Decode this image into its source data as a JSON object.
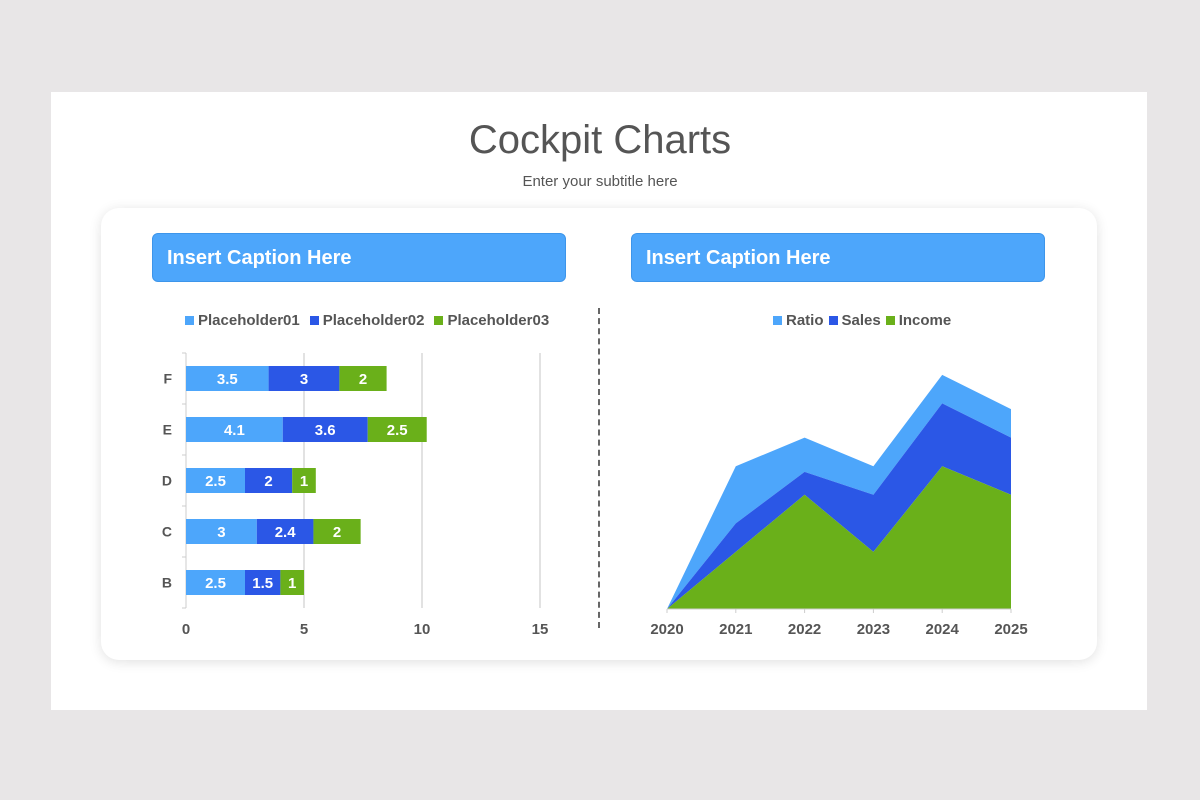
{
  "title": "Cockpit Charts",
  "subtitle": "Enter your subtitle here",
  "colors": {
    "light_blue": "#4da6fb",
    "blue": "#2b57e6",
    "green": "#6ab01a"
  },
  "chart_data": [
    {
      "type": "bar",
      "orientation": "horizontal",
      "stacked": true,
      "caption": "Insert Caption Here",
      "categories": [
        "F",
        "E",
        "D",
        "C",
        "B"
      ],
      "series": [
        {
          "name": "Placeholder01",
          "color": "#4da6fb",
          "values": [
            3.5,
            4.1,
            2.5,
            3,
            2.5
          ]
        },
        {
          "name": "Placeholder02",
          "color": "#2b57e6",
          "values": [
            3,
            3.6,
            2,
            2.4,
            1.5
          ]
        },
        {
          "name": "Placeholder03",
          "color": "#6ab01a",
          "values": [
            2,
            2.5,
            1,
            2,
            1
          ]
        }
      ],
      "xlim": [
        0,
        15
      ],
      "xticks": [
        "0",
        "5",
        "10",
        "15"
      ],
      "grid": true,
      "legend": "top"
    },
    {
      "type": "area",
      "stacked": true,
      "caption": "Insert Caption Here",
      "x": [
        "2020",
        "2021",
        "2022",
        "2023",
        "2024",
        "2025"
      ],
      "series": [
        {
          "name": "Ratio",
          "color": "#4da6fb",
          "values": [
            0,
            2,
            1.2,
            1,
            1,
            1
          ]
        },
        {
          "name": "Sales",
          "color": "#2b57e6",
          "values": [
            0,
            1,
            0.8,
            2,
            2.2,
            2
          ]
        },
        {
          "name": "Income",
          "color": "#6ab01a",
          "values": [
            0,
            2,
            4,
            2,
            5,
            4
          ]
        }
      ],
      "ylim": [
        0,
        9
      ],
      "grid": false,
      "legend": "top"
    }
  ]
}
